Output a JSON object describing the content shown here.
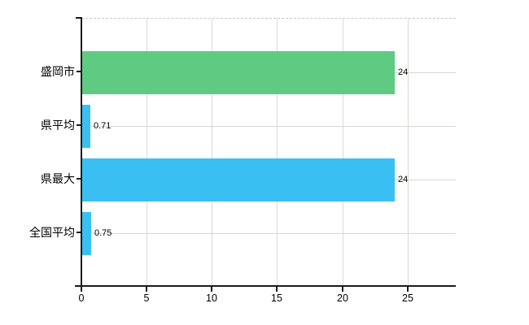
{
  "chart_data": {
    "type": "bar",
    "orientation": "horizontal",
    "categories": [
      "盛岡市",
      "県平均",
      "県最大",
      "全国平均"
    ],
    "values": [
      24,
      0.71,
      24,
      0.75
    ],
    "value_labels": [
      "24",
      "0.71",
      "24",
      "0.75"
    ],
    "series": [
      {
        "name": "盛岡市",
        "value": 24,
        "color": "#5fca81"
      },
      {
        "name": "県平均",
        "value": 0.71,
        "color": "#3abff2"
      },
      {
        "name": "県最大",
        "value": 24,
        "color": "#3abff2"
      },
      {
        "name": "全国平均",
        "value": 0.75,
        "color": "#3abff2"
      }
    ],
    "xticks": [
      "0",
      "5",
      "10",
      "15",
      "20",
      "25"
    ],
    "xtick_values": [
      0,
      5,
      10,
      15,
      20,
      25
    ],
    "xlim": [
      0,
      28.7
    ],
    "grid": true,
    "legend": false
  },
  "colors": {
    "green_bar": "#5fca81",
    "blue_bar": "#3abff2",
    "vertical_gridline": "#dadad6",
    "horizontal_gridline": "#d4d8d2",
    "top_border": "#c6c6c6",
    "axis": "#1a1a1a",
    "text": "#000000",
    "background": "#ffffff"
  }
}
